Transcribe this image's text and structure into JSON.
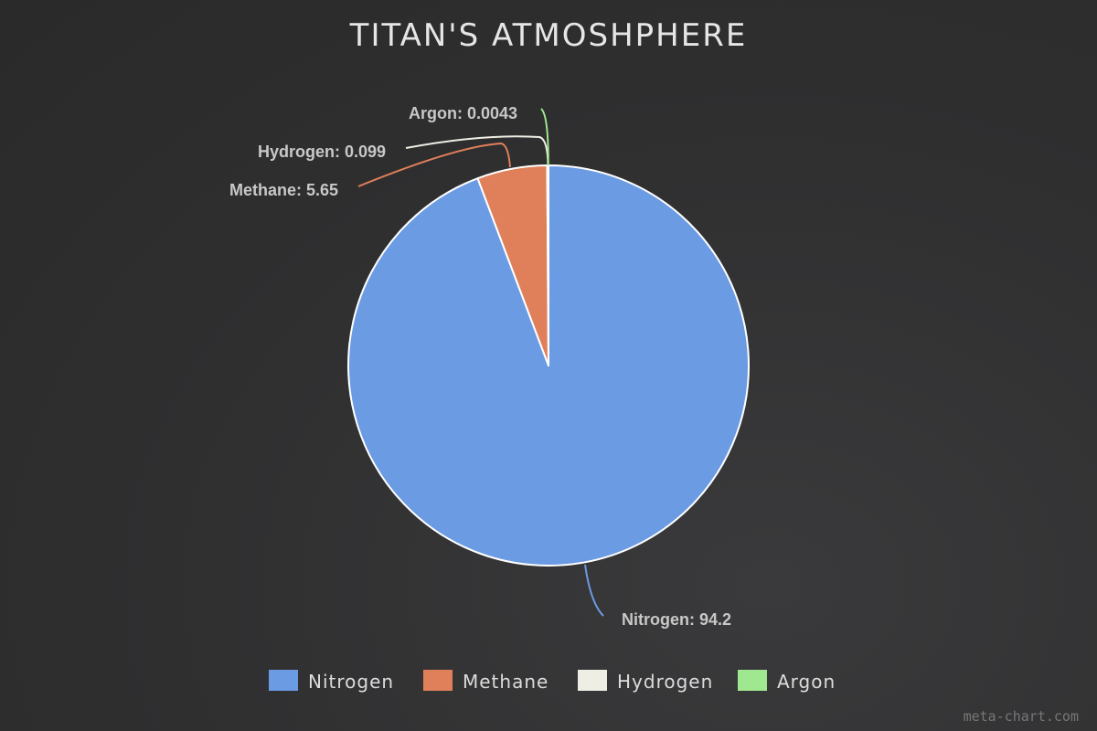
{
  "chart_data": {
    "type": "pie",
    "title": "TITAN'S ATMOSHPHERE",
    "slices": [
      {
        "name": "Nitrogen",
        "value": 94.2,
        "label": "Nitrogen: 94.2",
        "color": "#6b9be3"
      },
      {
        "name": "Methane",
        "value": 5.65,
        "label": "Methane: 5.65",
        "color": "#e0805a"
      },
      {
        "name": "Hydrogen",
        "value": 0.099,
        "label": "Hydrogen: 0.099",
        "color": "#eeeee4"
      },
      {
        "name": "Argon",
        "value": 0.0043,
        "label": "Argon: 0.0043",
        "color": "#a0e890"
      }
    ],
    "legend_position": "bottom"
  },
  "credit": "meta-chart.com"
}
